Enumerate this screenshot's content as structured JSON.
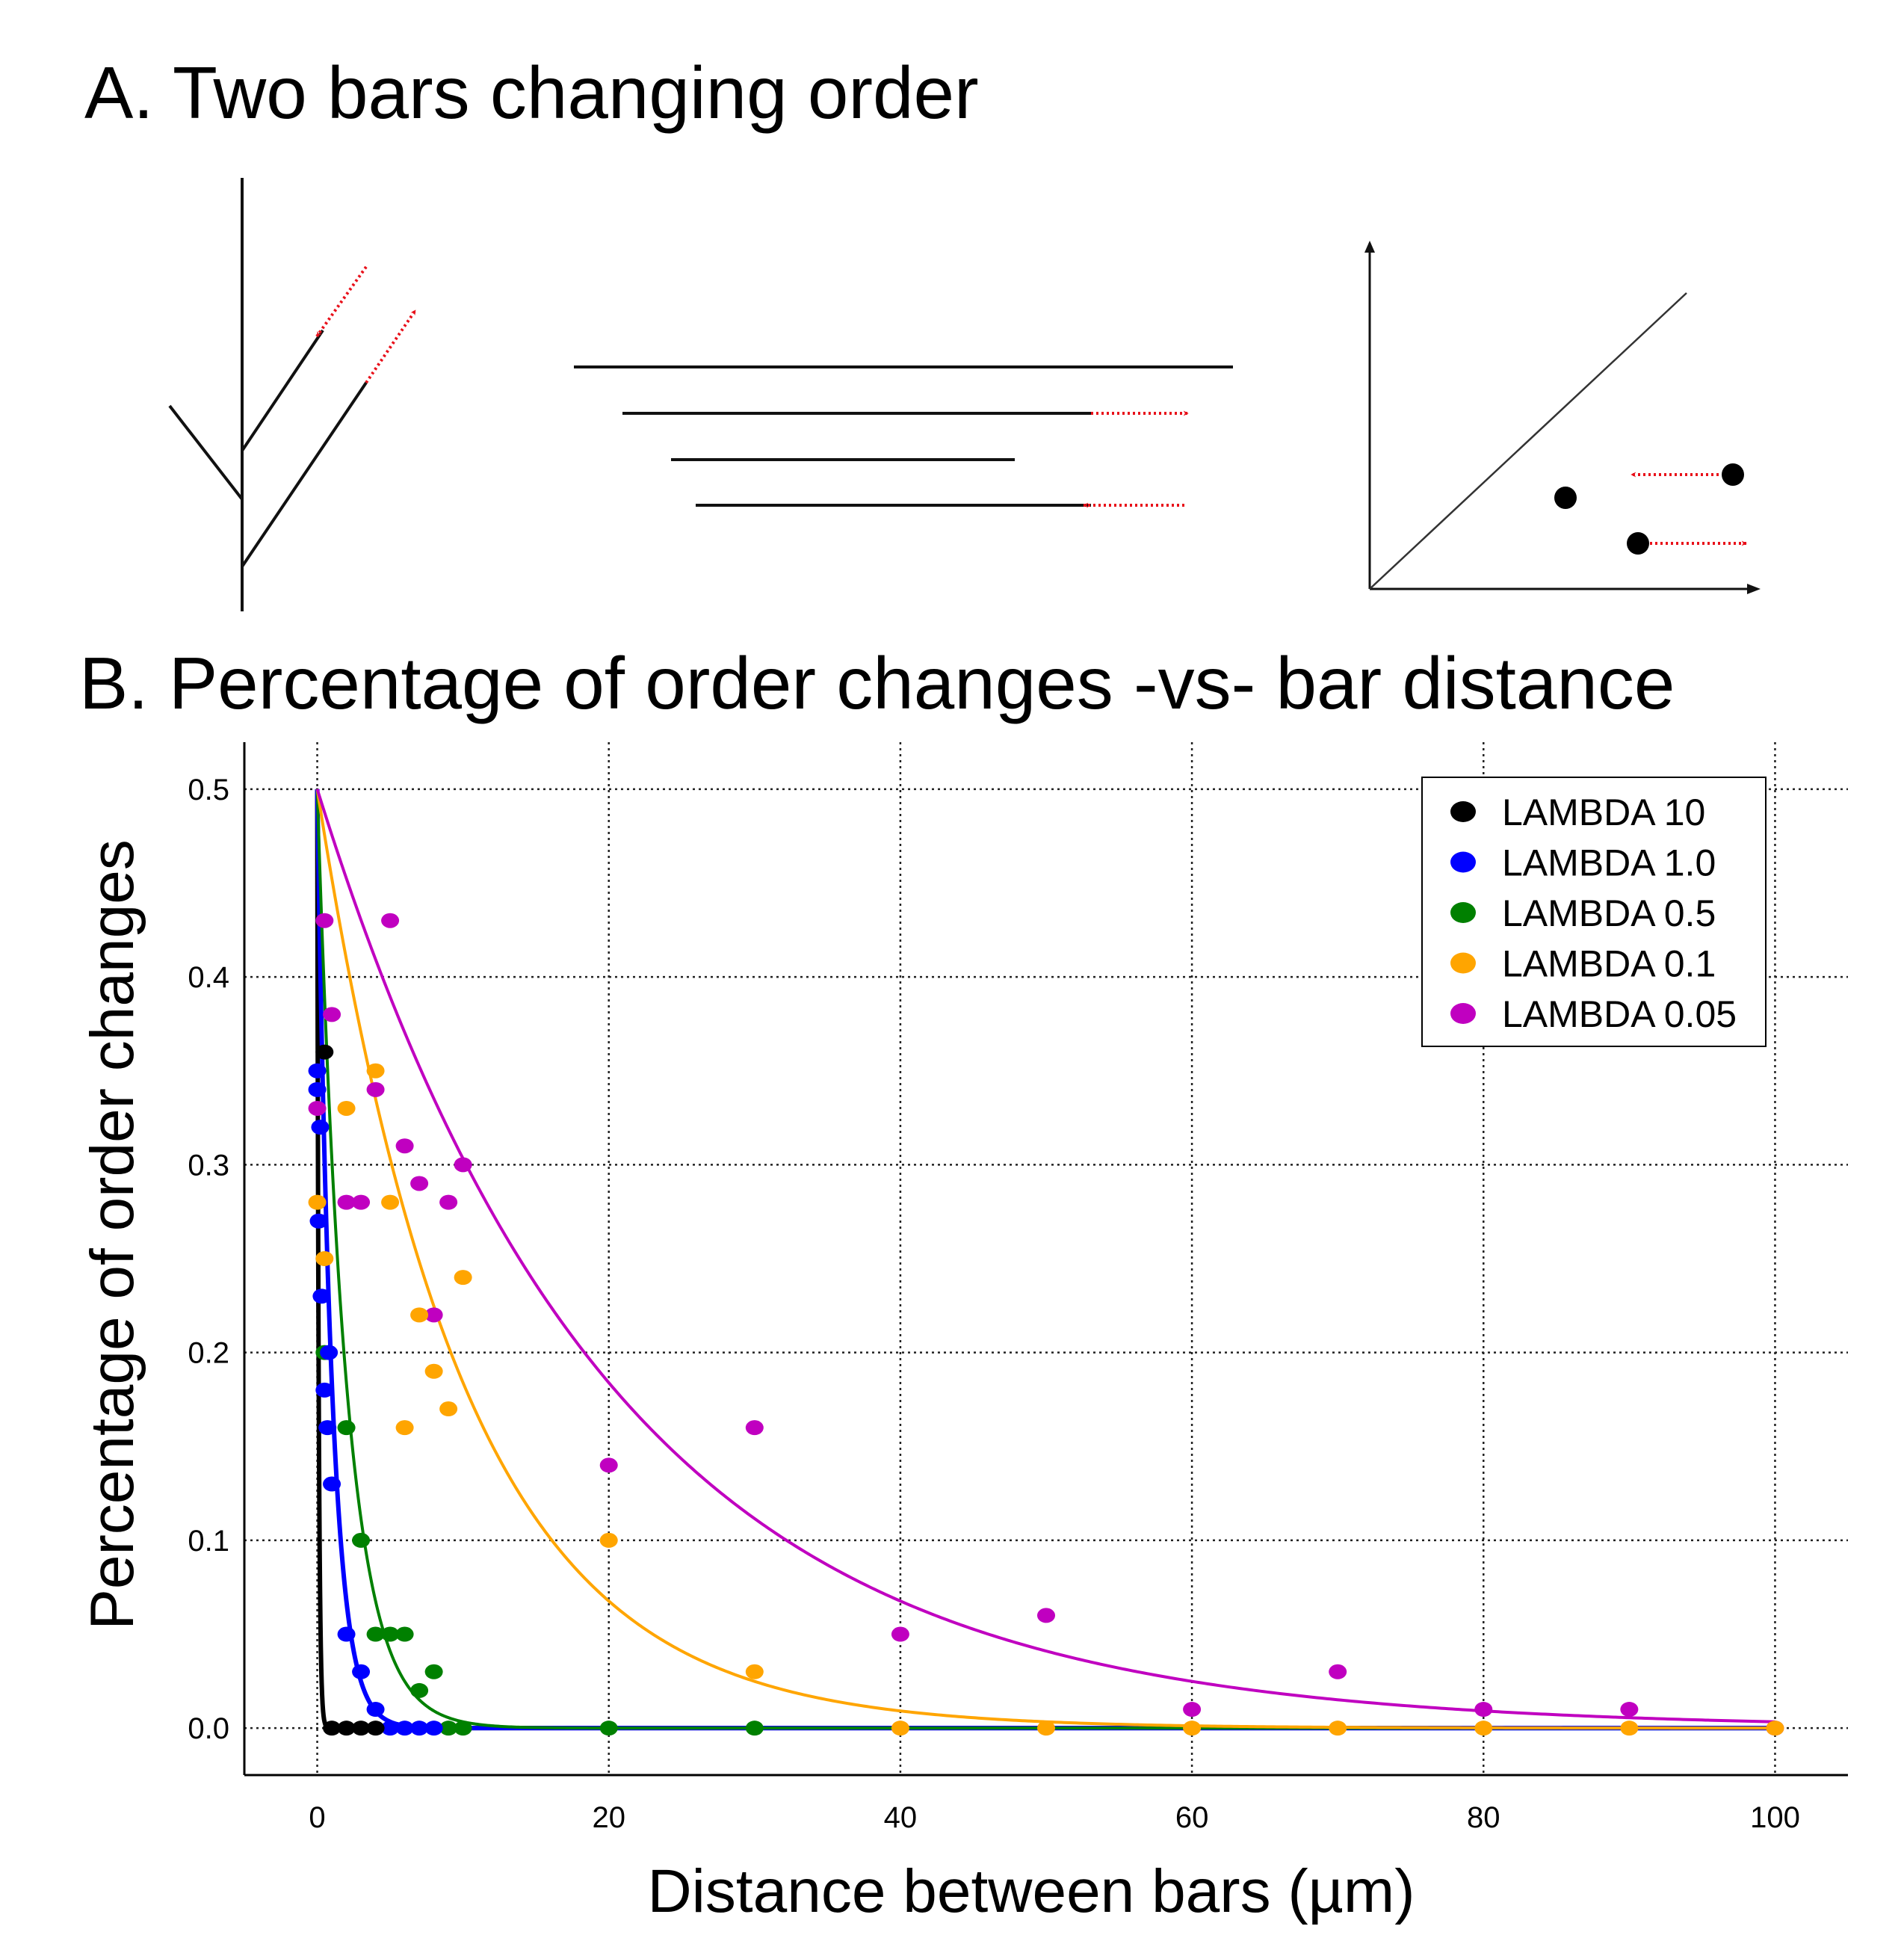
{
  "panel_a": {
    "title": "A. Two bars changing order"
  },
  "panel_b": {
    "title": "B. Percentage of order changes -vs- bar distance"
  },
  "colors": {
    "lambda10": "#000000",
    "lambda1": "#0000ff",
    "lambda05": "#008000",
    "lambda01": "#ffa500",
    "lambda005": "#c000c0",
    "arrow": "#e8101a"
  },
  "chart_data": {
    "type": "scatter",
    "title": "B. Percentage of order changes -vs- bar distance",
    "xlabel": "Distance between bars",
    "xunit": "(µm)",
    "ylabel": "Percentage of order changes",
    "xlim": [
      -5,
      105
    ],
    "ylim": [
      -0.025,
      0.525
    ],
    "xticks": [
      0,
      20,
      40,
      60,
      80,
      100
    ],
    "xtick_labels": [
      "0",
      "20",
      "40",
      "60",
      "80",
      "100"
    ],
    "yticks": [
      0.0,
      0.1,
      0.2,
      0.3,
      0.4,
      0.5
    ],
    "ytick_labels": [
      "0.0",
      "0.1",
      "0.2",
      "0.3",
      "0.4",
      "0.5"
    ],
    "grid": true,
    "legend_position": "top-right",
    "series": [
      {
        "name": "LAMBDA 10",
        "color": "#000000",
        "lambda": 10,
        "fit": "exponential",
        "points": [
          [
            0.5,
            0.36
          ],
          [
            1,
            0.0
          ],
          [
            2,
            0.0
          ],
          [
            3,
            0.0
          ],
          [
            4,
            0.0
          ]
        ]
      },
      {
        "name": "LAMBDA 1.0",
        "color": "#0000ff",
        "lambda": 1.0,
        "fit": "exponential",
        "points": [
          [
            0,
            0.35
          ],
          [
            0,
            0.34
          ],
          [
            0.2,
            0.32
          ],
          [
            0.1,
            0.27
          ],
          [
            0.3,
            0.23
          ],
          [
            0.8,
            0.2
          ],
          [
            0.5,
            0.18
          ],
          [
            0.7,
            0.16
          ],
          [
            1,
            0.13
          ],
          [
            2,
            0.05
          ],
          [
            3,
            0.03
          ],
          [
            4,
            0.01
          ],
          [
            5,
            0.0
          ],
          [
            6,
            0.0
          ],
          [
            7,
            0.0
          ],
          [
            8,
            0.0
          ]
        ]
      },
      {
        "name": "LAMBDA 0.5",
        "color": "#008000",
        "lambda": 0.5,
        "fit": "exponential",
        "points": [
          [
            0.5,
            0.2
          ],
          [
            2,
            0.16
          ],
          [
            3,
            0.1
          ],
          [
            4,
            0.05
          ],
          [
            5,
            0.05
          ],
          [
            6,
            0.05
          ],
          [
            7,
            0.02
          ],
          [
            8,
            0.03
          ],
          [
            9,
            0.0
          ],
          [
            10,
            0.0
          ],
          [
            20,
            0.0
          ],
          [
            30,
            0.0
          ]
        ]
      },
      {
        "name": "LAMBDA 0.1",
        "color": "#ffa500",
        "lambda": 0.1,
        "fit": "exponential",
        "points": [
          [
            0,
            0.28
          ],
          [
            0.5,
            0.25
          ],
          [
            2,
            0.33
          ],
          [
            4,
            0.35
          ],
          [
            5,
            0.28
          ],
          [
            6,
            0.16
          ],
          [
            7,
            0.22
          ],
          [
            8,
            0.19
          ],
          [
            9,
            0.17
          ],
          [
            10,
            0.24
          ],
          [
            20,
            0.1
          ],
          [
            30,
            0.03
          ],
          [
            40,
            0.0
          ],
          [
            50,
            0.0
          ],
          [
            60,
            0.0
          ],
          [
            70,
            0.0
          ],
          [
            80,
            0.0
          ],
          [
            90,
            0.0
          ],
          [
            100,
            0.0
          ]
        ]
      },
      {
        "name": "LAMBDA 0.05",
        "color": "#c000c0",
        "lambda": 0.05,
        "fit": "exponential",
        "points": [
          [
            0,
            0.33
          ],
          [
            0.5,
            0.43
          ],
          [
            1,
            0.38
          ],
          [
            2,
            0.28
          ],
          [
            3,
            0.28
          ],
          [
            4,
            0.34
          ],
          [
            5,
            0.43
          ],
          [
            6,
            0.31
          ],
          [
            7,
            0.29
          ],
          [
            8,
            0.22
          ],
          [
            9,
            0.28
          ],
          [
            10,
            0.3
          ],
          [
            20,
            0.14
          ],
          [
            30,
            0.16
          ],
          [
            40,
            0.05
          ],
          [
            50,
            0.06
          ],
          [
            60,
            0.01
          ],
          [
            70,
            0.03
          ],
          [
            80,
            0.01
          ],
          [
            90,
            0.01
          ],
          [
            100,
            0.0
          ]
        ]
      }
    ]
  }
}
